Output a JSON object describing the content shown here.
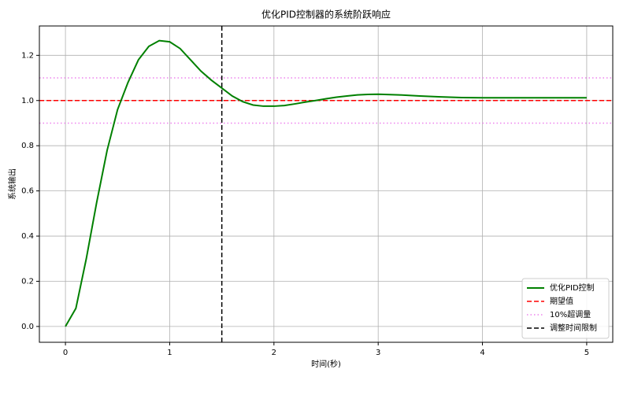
{
  "chart_data": {
    "type": "line",
    "title": "优化PID控制器的系统阶跃响应",
    "xlabel": "时间(秒)",
    "ylabel": "系统输出",
    "x": [
      0,
      0.1,
      0.2,
      0.3,
      0.4,
      0.5,
      0.6,
      0.7,
      0.8,
      0.9,
      1.0,
      1.1,
      1.2,
      1.3,
      1.4,
      1.5,
      1.6,
      1.7,
      1.8,
      1.9,
      2.0,
      2.1,
      2.2,
      2.3,
      2.4,
      2.5,
      2.6,
      2.7,
      2.8,
      2.9,
      3.0,
      3.2,
      3.4,
      3.6,
      3.8,
      4.0,
      4.5,
      5.0
    ],
    "series": [
      {
        "name": "优化PID控制",
        "color": "#008000",
        "values": [
          0,
          0.08,
          0.3,
          0.55,
          0.78,
          0.96,
          1.08,
          1.18,
          1.24,
          1.265,
          1.26,
          1.23,
          1.18,
          1.13,
          1.09,
          1.055,
          1.02,
          0.995,
          0.98,
          0.975,
          0.975,
          0.978,
          0.985,
          0.993,
          1.0,
          1.008,
          1.015,
          1.02,
          1.025,
          1.027,
          1.028,
          1.025,
          1.02,
          1.016,
          1.013,
          1.012,
          1.012,
          1.012
        ]
      }
    ],
    "reference_lines": [
      {
        "name": "期望值",
        "color": "#ff0000",
        "style": "dashed",
        "orientation": "horizontal",
        "values": [
          1.0
        ]
      },
      {
        "name": "10%超调量",
        "color": "#ee82ee",
        "style": "dotted",
        "orientation": "horizontal",
        "values": [
          1.1,
          0.9
        ]
      },
      {
        "name": "调整时间限制",
        "color": "#000000",
        "style": "dashed",
        "orientation": "vertical",
        "values": [
          1.5
        ]
      }
    ],
    "xlim": [
      -0.25,
      5.25
    ],
    "ylim": [
      -0.07,
      1.33
    ],
    "xticks": [
      0,
      1,
      2,
      3,
      4,
      5
    ],
    "yticks": [
      {
        "value": 0,
        "label": "0.0"
      },
      0.2,
      0.4,
      0.6,
      0.8,
      {
        "value": 1,
        "label": "1.0"
      },
      1.2
    ],
    "grid": true,
    "legend": "lower right"
  }
}
